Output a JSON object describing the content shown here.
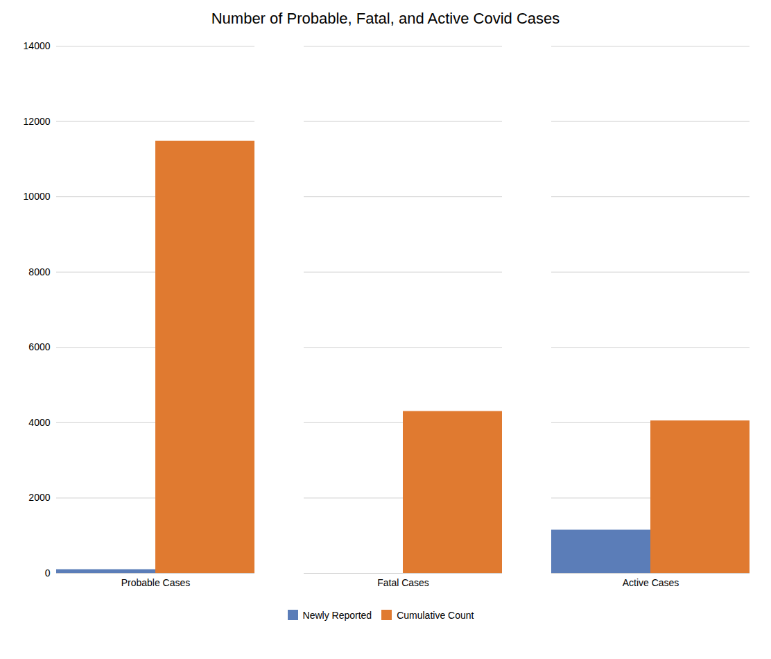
{
  "chart_data": {
    "type": "bar",
    "title": "Number of Probable, Fatal, and Active Covid Cases",
    "categories": [
      "Probable Cases",
      "Fatal Cases",
      "Active Cases"
    ],
    "series": [
      {
        "name": "Newly Reported",
        "color": "#5B7DB8",
        "values": [
          100,
          0,
          1150
        ]
      },
      {
        "name": "Cumulative Count",
        "color": "#E07A30",
        "values": [
          11480,
          4300,
          4050
        ]
      }
    ],
    "ylim": [
      0,
      14000
    ],
    "yticks": [
      0,
      2000,
      4000,
      6000,
      8000,
      10000,
      12000,
      14000
    ],
    "grid": true,
    "legend": "bottom"
  }
}
